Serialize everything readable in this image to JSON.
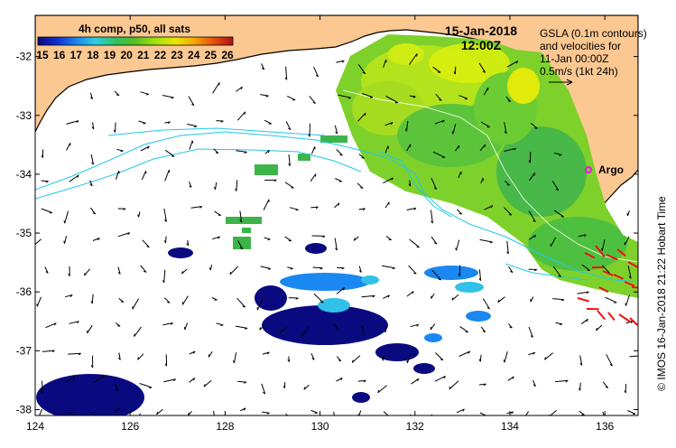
{
  "figure": {
    "composite_label": "4h comp, p50, all sats",
    "date": "15-Jan-2018",
    "time": "12:00Z",
    "gsla_lines": [
      "GSLA (0.1m contours)",
      "and velocities for",
      "11-Jan 00:00Z",
      "0.5m/s (1kt 24h)"
    ],
    "argo_label": "Argo",
    "credit": "© IMOS 16-Jan-2018 21:22 Hobart Time"
  },
  "colorbar": {
    "ticks": [
      "15",
      "16",
      "17",
      "18",
      "19",
      "20",
      "21",
      "22",
      "23",
      "24",
      "25",
      "26"
    ],
    "min": 15,
    "max": 26
  },
  "axes": {
    "x_ticks": [
      "124",
      "126",
      "128",
      "130",
      "132",
      "134",
      "136"
    ],
    "y_ticks": [
      "-32",
      "-33",
      "-34",
      "-35",
      "-36",
      "-37",
      "-38"
    ],
    "lon_range": [
      124,
      136.7
    ],
    "lat_range": [
      -38.1,
      -31.3
    ]
  },
  "colors": {
    "land": "#fcc892",
    "ocean": "#ffffff",
    "coast": "#000000",
    "contour": "#22c8e8",
    "argo": "#ff00ff",
    "warm_vectors": "#ee1111",
    "vector": "#000000"
  }
}
